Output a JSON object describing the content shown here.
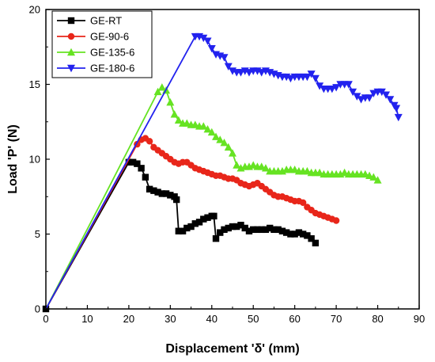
{
  "chart_data": {
    "type": "line",
    "title": "",
    "xlabel": "Displacement 'δ' (mm)",
    "ylabel": "Load 'P' (N)",
    "xlim": [
      0,
      90
    ],
    "ylim": [
      0,
      20
    ],
    "xticks": [
      0,
      10,
      20,
      30,
      40,
      50,
      60,
      70,
      80,
      90
    ],
    "yticks": [
      0,
      5,
      10,
      15,
      20
    ],
    "grid": false,
    "legend_position": "top-left",
    "series": [
      {
        "name": "GE-RT",
        "color": "#000000",
        "marker": "square",
        "points": [
          [
            0,
            0
          ],
          [
            10,
            4.9
          ],
          [
            20,
            9.8
          ],
          [
            21,
            9.8
          ],
          [
            22,
            9.7
          ],
          [
            23,
            9.4
          ],
          [
            24,
            8.8
          ],
          [
            25,
            8.0
          ],
          [
            26,
            7.9
          ],
          [
            27,
            7.8
          ],
          [
            28,
            7.7
          ],
          [
            29,
            7.7
          ],
          [
            30,
            7.6
          ],
          [
            31,
            7.5
          ],
          [
            31.5,
            7.3
          ],
          [
            32,
            5.2
          ],
          [
            33,
            5.2
          ],
          [
            34,
            5.4
          ],
          [
            35,
            5.5
          ],
          [
            36,
            5.7
          ],
          [
            37,
            5.8
          ],
          [
            38,
            6.0
          ],
          [
            39,
            6.1
          ],
          [
            40,
            6.2
          ],
          [
            40.5,
            6.2
          ],
          [
            41,
            4.7
          ],
          [
            42,
            5.1
          ],
          [
            43,
            5.3
          ],
          [
            44,
            5.4
          ],
          [
            45,
            5.5
          ],
          [
            46,
            5.5
          ],
          [
            47,
            5.6
          ],
          [
            48,
            5.4
          ],
          [
            49,
            5.2
          ],
          [
            50,
            5.3
          ],
          [
            51,
            5.3
          ],
          [
            52,
            5.3
          ],
          [
            53,
            5.3
          ],
          [
            54,
            5.4
          ],
          [
            55,
            5.3
          ],
          [
            56,
            5.3
          ],
          [
            57,
            5.2
          ],
          [
            58,
            5.1
          ],
          [
            59,
            5.0
          ],
          [
            60,
            5.0
          ],
          [
            61,
            5.1
          ],
          [
            62,
            5.0
          ],
          [
            63,
            4.9
          ],
          [
            64,
            4.7
          ],
          [
            65,
            4.4
          ]
        ]
      },
      {
        "name": "GE-90-6",
        "color": "#e8261a",
        "marker": "circle",
        "points": [
          [
            0,
            0
          ],
          [
            11,
            5.5
          ],
          [
            22,
            11.0
          ],
          [
            23,
            11.3
          ],
          [
            24,
            11.4
          ],
          [
            25,
            11.2
          ],
          [
            26,
            10.8
          ],
          [
            27,
            10.6
          ],
          [
            28,
            10.4
          ],
          [
            29,
            10.2
          ],
          [
            30,
            10.0
          ],
          [
            31,
            9.8
          ],
          [
            32,
            9.7
          ],
          [
            33,
            9.8
          ],
          [
            34,
            9.8
          ],
          [
            35,
            9.6
          ],
          [
            36,
            9.4
          ],
          [
            37,
            9.3
          ],
          [
            38,
            9.2
          ],
          [
            39,
            9.1
          ],
          [
            40,
            9.0
          ],
          [
            41,
            8.9
          ],
          [
            42,
            8.9
          ],
          [
            43,
            8.8
          ],
          [
            44,
            8.7
          ],
          [
            45,
            8.7
          ],
          [
            46,
            8.6
          ],
          [
            47,
            8.4
          ],
          [
            48,
            8.3
          ],
          [
            49,
            8.2
          ],
          [
            50,
            8.3
          ],
          [
            51,
            8.4
          ],
          [
            52,
            8.2
          ],
          [
            53,
            8.0
          ],
          [
            54,
            7.8
          ],
          [
            55,
            7.6
          ],
          [
            56,
            7.5
          ],
          [
            57,
            7.5
          ],
          [
            58,
            7.4
          ],
          [
            59,
            7.3
          ],
          [
            60,
            7.2
          ],
          [
            61,
            7.2
          ],
          [
            62,
            7.1
          ],
          [
            63,
            6.8
          ],
          [
            64,
            6.6
          ],
          [
            65,
            6.4
          ],
          [
            66,
            6.3
          ],
          [
            67,
            6.2
          ],
          [
            68,
            6.1
          ],
          [
            69,
            6.0
          ],
          [
            70,
            5.9
          ]
        ]
      },
      {
        "name": "GE-135-6",
        "color": "#66e322",
        "marker": "triangle-up",
        "points": [
          [
            0,
            0
          ],
          [
            13.5,
            7.2
          ],
          [
            27,
            14.5
          ],
          [
            28,
            14.8
          ],
          [
            29,
            14.6
          ],
          [
            30,
            13.8
          ],
          [
            31,
            13.0
          ],
          [
            32,
            12.6
          ],
          [
            33,
            12.4
          ],
          [
            34,
            12.4
          ],
          [
            35,
            12.3
          ],
          [
            36,
            12.3
          ],
          [
            37,
            12.2
          ],
          [
            38,
            12.2
          ],
          [
            39,
            12.0
          ],
          [
            40,
            11.8
          ],
          [
            41,
            11.5
          ],
          [
            42,
            11.3
          ],
          [
            43,
            11.1
          ],
          [
            44,
            10.8
          ],
          [
            45,
            10.4
          ],
          [
            46,
            9.6
          ],
          [
            47,
            9.4
          ],
          [
            48,
            9.5
          ],
          [
            49,
            9.5
          ],
          [
            50,
            9.6
          ],
          [
            51,
            9.5
          ],
          [
            52,
            9.5
          ],
          [
            53,
            9.4
          ],
          [
            54,
            9.2
          ],
          [
            55,
            9.2
          ],
          [
            56,
            9.2
          ],
          [
            57,
            9.2
          ],
          [
            58,
            9.3
          ],
          [
            59,
            9.3
          ],
          [
            60,
            9.3
          ],
          [
            61,
            9.2
          ],
          [
            62,
            9.2
          ],
          [
            63,
            9.2
          ],
          [
            64,
            9.1
          ],
          [
            65,
            9.1
          ],
          [
            66,
            9.1
          ],
          [
            67,
            9.0
          ],
          [
            68,
            9.0
          ],
          [
            69,
            9.0
          ],
          [
            70,
            9.0
          ],
          [
            71,
            9.0
          ],
          [
            72,
            9.1
          ],
          [
            73,
            9.0
          ],
          [
            74,
            9.0
          ],
          [
            75,
            9.0
          ],
          [
            76,
            9.0
          ],
          [
            77,
            9.0
          ],
          [
            78,
            8.9
          ],
          [
            79,
            8.8
          ],
          [
            80,
            8.6
          ]
        ]
      },
      {
        "name": "GE-180-6",
        "color": "#2222ee",
        "marker": "triangle-down",
        "points": [
          [
            0,
            0
          ],
          [
            18,
            9.1
          ],
          [
            36,
            18.2
          ],
          [
            37,
            18.2
          ],
          [
            38,
            18.1
          ],
          [
            39,
            17.9
          ],
          [
            40,
            17.4
          ],
          [
            41,
            17.0
          ],
          [
            42,
            16.9
          ],
          [
            43,
            16.8
          ],
          [
            44,
            16.2
          ],
          [
            45,
            15.9
          ],
          [
            46,
            15.8
          ],
          [
            47,
            15.8
          ],
          [
            48,
            15.9
          ],
          [
            49,
            15.8
          ],
          [
            50,
            15.9
          ],
          [
            51,
            15.9
          ],
          [
            52,
            15.8
          ],
          [
            53,
            15.9
          ],
          [
            54,
            15.8
          ],
          [
            55,
            15.7
          ],
          [
            56,
            15.6
          ],
          [
            57,
            15.5
          ],
          [
            58,
            15.5
          ],
          [
            59,
            15.4
          ],
          [
            60,
            15.5
          ],
          [
            61,
            15.5
          ],
          [
            62,
            15.5
          ],
          [
            63,
            15.5
          ],
          [
            64,
            15.7
          ],
          [
            65,
            15.4
          ],
          [
            66,
            14.9
          ],
          [
            67,
            14.7
          ],
          [
            68,
            14.7
          ],
          [
            69,
            14.7
          ],
          [
            70,
            14.8
          ],
          [
            71,
            15.0
          ],
          [
            72,
            15.0
          ],
          [
            73,
            15.0
          ],
          [
            74,
            14.5
          ],
          [
            75,
            14.2
          ],
          [
            76,
            14.0
          ],
          [
            77,
            14.1
          ],
          [
            78,
            14.1
          ],
          [
            79,
            14.4
          ],
          [
            80,
            14.5
          ],
          [
            81,
            14.5
          ],
          [
            82,
            14.3
          ],
          [
            83,
            14.0
          ],
          [
            84,
            13.6
          ],
          [
            84.5,
            13.4
          ],
          [
            85,
            12.8
          ]
        ]
      }
    ]
  }
}
